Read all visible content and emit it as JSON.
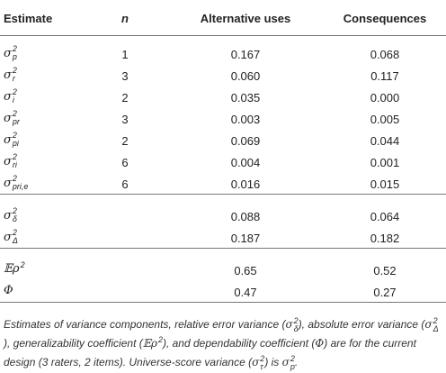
{
  "table": {
    "header": [
      "Estimate",
      "n",
      "Alternative uses",
      "Consequences"
    ],
    "groups": [
      [
        {
          "estimate": {
            "base": "σ",
            "sup": "2",
            "sub": "p"
          },
          "n": "1",
          "alternative_uses": "0.167",
          "consequences": "0.068"
        },
        {
          "estimate": {
            "base": "σ",
            "sup": "2",
            "sub": "r"
          },
          "n": "3",
          "alternative_uses": "0.060",
          "consequences": "0.117"
        },
        {
          "estimate": {
            "base": "σ",
            "sup": "2",
            "sub": "i"
          },
          "n": "2",
          "alternative_uses": "0.035",
          "consequences": "0.000"
        },
        {
          "estimate": {
            "base": "σ",
            "sup": "2",
            "sub": "pr"
          },
          "n": "3",
          "alternative_uses": "0.003",
          "consequences": "0.005"
        },
        {
          "estimate": {
            "base": "σ",
            "sup": "2",
            "sub": "pi"
          },
          "n": "2",
          "alternative_uses": "0.069",
          "consequences": "0.044"
        },
        {
          "estimate": {
            "base": "σ",
            "sup": "2",
            "sub": "ri"
          },
          "n": "6",
          "alternative_uses": "0.004",
          "consequences": "0.001"
        },
        {
          "estimate": {
            "base": "σ",
            "sup": "2",
            "sub": "pri,e"
          },
          "n": "6",
          "alternative_uses": "0.016",
          "consequences": "0.015"
        }
      ],
      [
        {
          "estimate": {
            "base": "σ",
            "sup": "2",
            "sub": "δ"
          },
          "alternative_uses": "0.088",
          "consequences": "0.064"
        },
        {
          "estimate": {
            "base": "σ",
            "sup": "2",
            "sub": "Δ"
          },
          "alternative_uses": "0.187",
          "consequences": "0.182"
        }
      ],
      [
        {
          "estimate": {
            "base": "𝔼ρ",
            "sup": "2"
          },
          "alternative_uses": "0.65",
          "consequences": "0.52"
        },
        {
          "estimate": {
            "base": "Φ"
          },
          "alternative_uses": "0.47",
          "consequences": "0.27"
        }
      ]
    ],
    "footnote": [
      {
        "text": "Estimates of variance components, relative error variance ("
      },
      {
        "base": "σ",
        "sup": "2",
        "sub": "δ"
      },
      {
        "text": "), absolute error variance ("
      },
      {
        "base": "σ",
        "sup": "2",
        "sub": "Δ"
      },
      {
        "text": "), generalizability coefficient ("
      },
      {
        "base": "𝔼ρ",
        "sup": "2"
      },
      {
        "text": "), and dependability coefficient ("
      },
      {
        "base": "Φ"
      },
      {
        "text": ") are for the current design (3 raters, 2 items). Universe-score variance ("
      },
      {
        "base": "σ",
        "sup": "2",
        "sub": "τ"
      },
      {
        "text": ") is "
      },
      {
        "base": "σ",
        "sup": "2",
        "sub": "p"
      },
      {
        "text": "."
      }
    ]
  }
}
